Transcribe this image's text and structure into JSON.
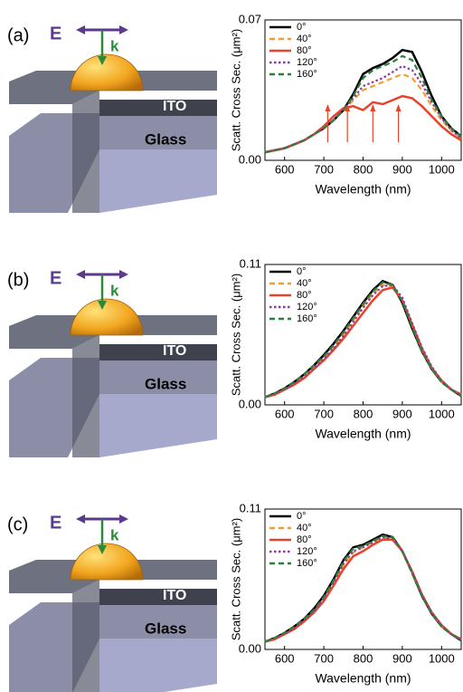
{
  "illustrations": [
    {
      "label": "(a)",
      "field": "E",
      "wavevector": "k",
      "layer_top": "ITO",
      "layer_bottom": "Glass"
    },
    {
      "label": "(b)",
      "field": "E",
      "wavevector": "k",
      "layer_top": "ITO",
      "layer_bottom": "Glass"
    },
    {
      "label": "(c)",
      "field": "E",
      "wavevector": "k",
      "layer_top": "ITO",
      "layer_bottom": "Glass"
    }
  ],
  "chart_data": [
    {
      "type": "line",
      "ylabel": "Scatt. Cross Sec. (μm²)",
      "xlabel": "Wavelength (nm)",
      "x": [
        550,
        575,
        600,
        625,
        650,
        675,
        700,
        725,
        750,
        775,
        800,
        825,
        850,
        875,
        900,
        925,
        950,
        975,
        1000,
        1025,
        1050
      ],
      "xlim": [
        550,
        1050
      ],
      "xticks": [
        600,
        700,
        800,
        900,
        1000
      ],
      "ylim": [
        0,
        0.07
      ],
      "yticks": [
        {
          "value": 0,
          "label": "0.00"
        },
        {
          "value": 0.07,
          "label": "0.07"
        }
      ],
      "legend": "upper left",
      "series": [
        {
          "name": "0°",
          "color": "#000000",
          "dash": "solid",
          "values": [
            0.004,
            0.005,
            0.006,
            0.008,
            0.01,
            0.013,
            0.016,
            0.02,
            0.025,
            0.033,
            0.043,
            0.046,
            0.048,
            0.051,
            0.055,
            0.054,
            0.044,
            0.032,
            0.022,
            0.016,
            0.012
          ]
        },
        {
          "name": "40°",
          "color": "#f39c34",
          "dash": "dash",
          "values": [
            0.004,
            0.005,
            0.006,
            0.008,
            0.01,
            0.013,
            0.016,
            0.02,
            0.025,
            0.03,
            0.035,
            0.037,
            0.039,
            0.041,
            0.043,
            0.041,
            0.035,
            0.027,
            0.02,
            0.015,
            0.011
          ]
        },
        {
          "name": "80°",
          "color": "#e8442b",
          "dash": "solid",
          "values": [
            0.004,
            0.005,
            0.006,
            0.008,
            0.01,
            0.013,
            0.017,
            0.022,
            0.026,
            0.027,
            0.025,
            0.029,
            0.028,
            0.03,
            0.032,
            0.031,
            0.027,
            0.022,
            0.017,
            0.013,
            0.01
          ]
        },
        {
          "name": "120°",
          "color": "#8e3a9e",
          "dash": "dot",
          "values": [
            0.004,
            0.005,
            0.006,
            0.008,
            0.01,
            0.013,
            0.016,
            0.02,
            0.025,
            0.031,
            0.037,
            0.039,
            0.041,
            0.044,
            0.047,
            0.045,
            0.038,
            0.029,
            0.021,
            0.015,
            0.011
          ]
        },
        {
          "name": "160°",
          "color": "#2a7f3a",
          "dash": "dash",
          "values": [
            0.004,
            0.005,
            0.006,
            0.008,
            0.01,
            0.013,
            0.016,
            0.02,
            0.025,
            0.032,
            0.041,
            0.045,
            0.047,
            0.049,
            0.052,
            0.05,
            0.041,
            0.03,
            0.022,
            0.016,
            0.012
          ]
        }
      ]
    },
    {
      "type": "line",
      "ylabel": "Scatt. Cross Sec. (μm²)",
      "xlabel": "Wavelength (nm)",
      "x": [
        550,
        575,
        600,
        625,
        650,
        675,
        700,
        725,
        750,
        775,
        800,
        825,
        850,
        875,
        900,
        925,
        950,
        975,
        1000,
        1025,
        1050
      ],
      "xlim": [
        550,
        1050
      ],
      "xticks": [
        600,
        700,
        800,
        900,
        1000
      ],
      "ylim": [
        0,
        0.11
      ],
      "yticks": [
        {
          "value": 0,
          "label": "0.00"
        },
        {
          "value": 0.11,
          "label": "0.11"
        }
      ],
      "legend": "upper left",
      "series": [
        {
          "name": "0°",
          "color": "#000000",
          "dash": "solid",
          "values": [
            0.006,
            0.009,
            0.013,
            0.018,
            0.024,
            0.031,
            0.039,
            0.048,
            0.058,
            0.069,
            0.08,
            0.09,
            0.097,
            0.094,
            0.08,
            0.06,
            0.042,
            0.028,
            0.018,
            0.012,
            0.007
          ]
        },
        {
          "name": "40°",
          "color": "#f39c34",
          "dash": "dash",
          "values": [
            0.006,
            0.009,
            0.012,
            0.017,
            0.023,
            0.029,
            0.037,
            0.045,
            0.055,
            0.066,
            0.077,
            0.087,
            0.094,
            0.093,
            0.082,
            0.062,
            0.043,
            0.029,
            0.018,
            0.012,
            0.008
          ]
        },
        {
          "name": "80°",
          "color": "#e8442b",
          "dash": "solid",
          "values": [
            0.006,
            0.008,
            0.012,
            0.016,
            0.021,
            0.028,
            0.035,
            0.043,
            0.052,
            0.062,
            0.072,
            0.082,
            0.09,
            0.092,
            0.082,
            0.063,
            0.044,
            0.029,
            0.019,
            0.012,
            0.008
          ]
        },
        {
          "name": "120°",
          "color": "#8e3a9e",
          "dash": "dot",
          "values": [
            0.006,
            0.009,
            0.012,
            0.017,
            0.022,
            0.029,
            0.036,
            0.044,
            0.054,
            0.065,
            0.076,
            0.086,
            0.093,
            0.094,
            0.084,
            0.064,
            0.045,
            0.03,
            0.019,
            0.012,
            0.008
          ]
        },
        {
          "name": "160°",
          "color": "#2a7f3a",
          "dash": "dash",
          "values": [
            0.006,
            0.009,
            0.013,
            0.018,
            0.024,
            0.031,
            0.038,
            0.047,
            0.057,
            0.068,
            0.079,
            0.089,
            0.096,
            0.094,
            0.081,
            0.061,
            0.042,
            0.028,
            0.018,
            0.012,
            0.007
          ]
        }
      ]
    },
    {
      "type": "line",
      "ylabel": "Scatt. Cross Sec. (μm²)",
      "xlabel": "Wavelength (nm)",
      "x": [
        550,
        575,
        600,
        625,
        650,
        675,
        700,
        725,
        750,
        775,
        800,
        825,
        850,
        875,
        900,
        925,
        950,
        975,
        1000,
        1025,
        1050
      ],
      "xlim": [
        550,
        1050
      ],
      "xticks": [
        600,
        700,
        800,
        900,
        1000
      ],
      "ylim": [
        0,
        0.11
      ],
      "yticks": [
        {
          "value": 0,
          "label": "0.00"
        },
        {
          "value": 0.11,
          "label": "0.11"
        }
      ],
      "legend": "upper left",
      "series": [
        {
          "name": "0°",
          "color": "#000000",
          "dash": "solid",
          "values": [
            0.006,
            0.009,
            0.013,
            0.018,
            0.024,
            0.032,
            0.042,
            0.055,
            0.07,
            0.08,
            0.082,
            0.086,
            0.09,
            0.088,
            0.077,
            0.06,
            0.042,
            0.028,
            0.018,
            0.012,
            0.007
          ]
        },
        {
          "name": "40°",
          "color": "#f39c34",
          "dash": "dash",
          "values": [
            0.006,
            0.009,
            0.012,
            0.017,
            0.023,
            0.03,
            0.04,
            0.052,
            0.066,
            0.076,
            0.08,
            0.084,
            0.088,
            0.087,
            0.077,
            0.06,
            0.043,
            0.029,
            0.018,
            0.012,
            0.008
          ]
        },
        {
          "name": "80°",
          "color": "#e8442b",
          "dash": "solid",
          "values": [
            0.006,
            0.008,
            0.012,
            0.016,
            0.022,
            0.029,
            0.038,
            0.05,
            0.063,
            0.073,
            0.077,
            0.082,
            0.086,
            0.086,
            0.077,
            0.061,
            0.043,
            0.029,
            0.019,
            0.012,
            0.008
          ]
        },
        {
          "name": "120°",
          "color": "#8e3a9e",
          "dash": "dot",
          "values": [
            0.006,
            0.009,
            0.012,
            0.017,
            0.023,
            0.03,
            0.04,
            0.053,
            0.067,
            0.077,
            0.08,
            0.084,
            0.088,
            0.087,
            0.077,
            0.061,
            0.043,
            0.029,
            0.019,
            0.012,
            0.008
          ]
        },
        {
          "name": "160°",
          "color": "#2a7f3a",
          "dash": "dash",
          "values": [
            0.006,
            0.009,
            0.013,
            0.018,
            0.024,
            0.031,
            0.041,
            0.054,
            0.069,
            0.079,
            0.081,
            0.085,
            0.089,
            0.088,
            0.077,
            0.06,
            0.042,
            0.028,
            0.018,
            0.012,
            0.007
          ]
        }
      ]
    }
  ]
}
